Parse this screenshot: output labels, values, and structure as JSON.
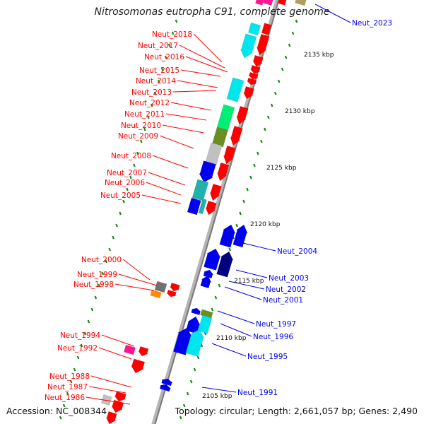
{
  "title": "Nitrosomonas eutropha C91, complete genome",
  "footer": {
    "accession": "Accession: NC_008344",
    "topology": "Topology: circular; Length: 2,661,057 bp; Genes: 2,490"
  },
  "colors": {
    "red": "#ff0000",
    "blue": "#0000ee",
    "cyan": "#00e5ee",
    "teal": "#20b2aa",
    "springgreen": "#00ee76",
    "olive": "#6b8e23",
    "silver": "#c0c0c0",
    "gray": "#707070",
    "orange": "#ff8c00",
    "pink": "#ff1493",
    "navy": "#000080",
    "tan": "#b0a060",
    "backbone": "#909090",
    "gc_marker": "#1a8a1a"
  },
  "scale_labels": [
    {
      "text": "2135 kbp"
    },
    {
      "text": "2130 kbp"
    },
    {
      "text": "2125 kbp"
    },
    {
      "text": "2120 kbp"
    },
    {
      "text": "2115 kbp"
    },
    {
      "text": "2110 kbp"
    },
    {
      "text": "2105 kbp"
    }
  ],
  "reverse_labels": [
    {
      "text": "Neut_2018"
    },
    {
      "text": "Neut_2017"
    },
    {
      "text": "Neut_2016"
    },
    {
      "text": "Neut_2015"
    },
    {
      "text": "Neut_2014"
    },
    {
      "text": "Neut_2013"
    },
    {
      "text": "Neut_2012"
    },
    {
      "text": "Neut_2011"
    },
    {
      "text": "Neut_2010"
    },
    {
      "text": "Neut_2009"
    },
    {
      "text": "Neut_2008"
    },
    {
      "text": "Neut_2007"
    },
    {
      "text": "Neut_2006"
    },
    {
      "text": "Neut_2005"
    },
    {
      "text": "Neut_2000"
    },
    {
      "text": "Neut_1999"
    },
    {
      "text": "Neut_1998"
    },
    {
      "text": "Neut_1994"
    },
    {
      "text": "Neut_1992"
    },
    {
      "text": "Neut_1988"
    },
    {
      "text": "Neut_1987"
    },
    {
      "text": "Neut_1986"
    }
  ],
  "forward_labels": [
    {
      "text": "Neut_2023"
    },
    {
      "text": "Neut_2004"
    },
    {
      "text": "Neut_2003"
    },
    {
      "text": "Neut_2002"
    },
    {
      "text": "Neut_2001"
    },
    {
      "text": "Neut_1997"
    },
    {
      "text": "Neut_1996"
    },
    {
      "text": "Neut_1995"
    },
    {
      "text": "Neut_1991"
    }
  ]
}
